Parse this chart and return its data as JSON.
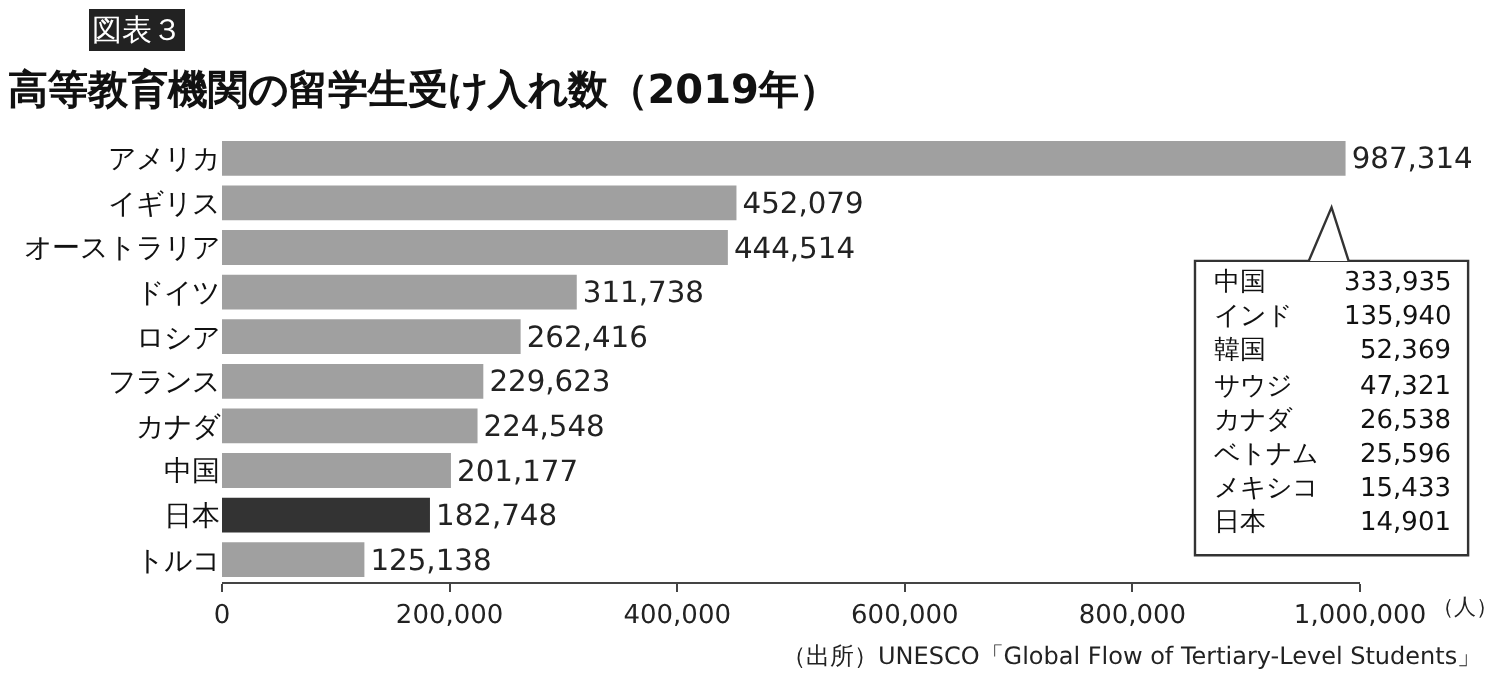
{
  "chart_data": {
    "type": "bar",
    "orientation": "horizontal",
    "title": "高等教育機関の留学生受け入れ数（2019年）",
    "xlabel": "（人）",
    "categories": [
      "アメリカ",
      "イギリス",
      "オーストラリア",
      "ドイツ",
      "ロシア",
      "フランス",
      "カナダ",
      "中国",
      "日本",
      "トルコ"
    ],
    "values": [
      987314,
      452079,
      444514,
      311738,
      262416,
      229623,
      224548,
      201177,
      182748,
      125138
    ],
    "value_labels": [
      "987,314",
      "452,079",
      "444,514",
      "311,738",
      "262,416",
      "229,623",
      "224,548",
      "201,177",
      "182,748",
      "125,138"
    ],
    "colors": [
      "#a0a0a0",
      "#a0a0a0",
      "#a0a0a0",
      "#a0a0a0",
      "#a0a0a0",
      "#a0a0a0",
      "#a0a0a0",
      "#a0a0a0",
      "#333333",
      "#a0a0a0"
    ],
    "xlim": [
      0,
      1000000
    ],
    "xticks": [
      0,
      {
        "value": 200000,
        "label": "200,000"
      },
      {
        "value": 400000,
        "label": "400,000"
      },
      {
        "value": 600000,
        "label": "600,000"
      },
      {
        "value": 800000,
        "label": "800,000"
      },
      {
        "value": 1000000,
        "label": "1,000,000"
      }
    ],
    "grid": false,
    "legend": false,
    "annotations": [
      "図表３",
      "中国 333,935\nインド 135,940\n韓国 52,369\nサウジ 47,321\nカナダ 26,538\nベトナム 25,596\nメキシコ 15,433\n日本 14,901",
      "（出所）UNESCO「Global Flow of Tertiary-Level Students」"
    ]
  }
}
